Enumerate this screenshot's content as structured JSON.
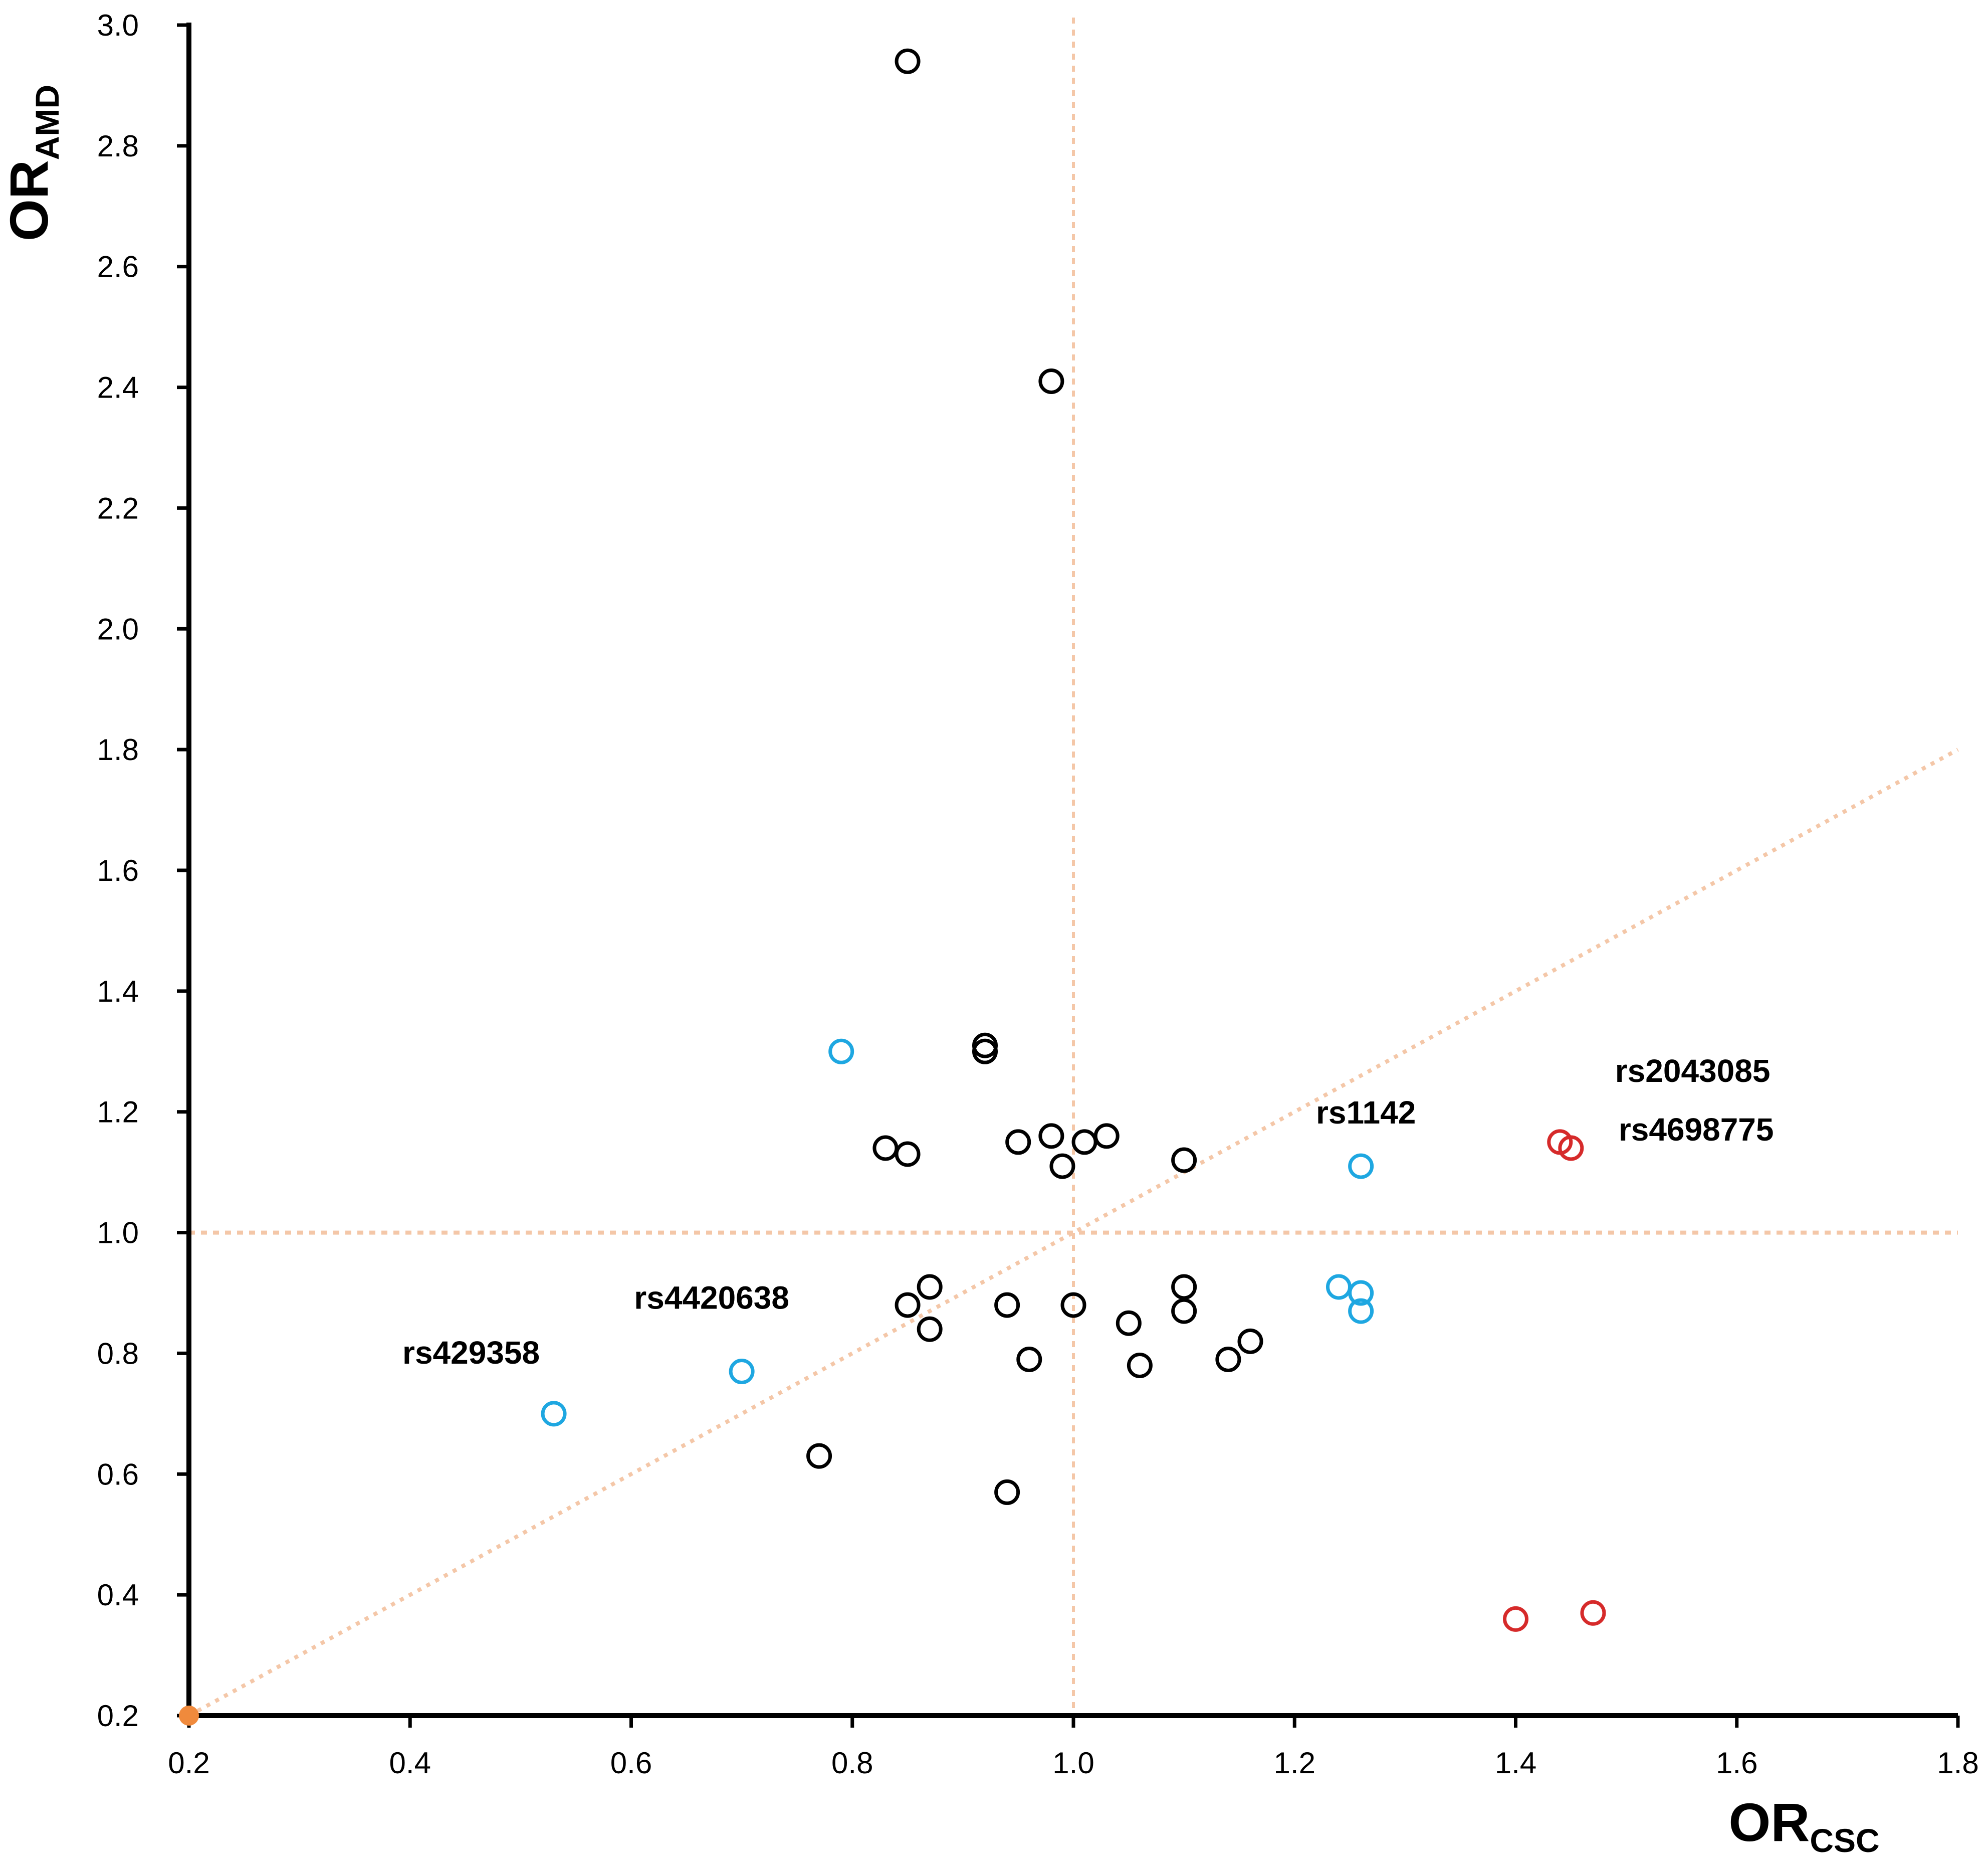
{
  "chart_data": {
    "type": "scatter",
    "title": "",
    "xlabel": {
      "main": "OR",
      "sub": "CSC"
    },
    "ylabel": {
      "main": "OR",
      "sub": "AMD"
    },
    "xlim": [
      0.2,
      1.8
    ],
    "ylim": [
      0.2,
      3.0
    ],
    "x_ticks": [
      "0.2",
      "0.4",
      "0.6",
      "0.8",
      "1.0",
      "1.2",
      "1.4",
      "1.6",
      "1.8"
    ],
    "y_ticks": [
      "0.2",
      "0.4",
      "0.6",
      "0.8",
      "1.0",
      "1.2",
      "1.4",
      "1.6",
      "1.8",
      "2.0",
      "2.2",
      "2.4",
      "2.6",
      "2.8",
      "3.0"
    ],
    "grid": false,
    "reference_lines": [
      {
        "kind": "vertical",
        "x": 1.0,
        "color": "#f4c7a8"
      },
      {
        "kind": "horizontal",
        "y": 1.0,
        "color": "#f4c7a8"
      },
      {
        "kind": "diagonal",
        "from": [
          0.2,
          0.2
        ],
        "to": [
          1.8,
          1.8
        ],
        "color": "#f4c7a8"
      }
    ],
    "origin_marker": {
      "x": 0.2,
      "y": 0.2,
      "color": "#f08a3c"
    },
    "series": [
      {
        "name": "black",
        "color": "#000000",
        "points": [
          [
            0.85,
            2.94
          ],
          [
            0.98,
            2.41
          ],
          [
            0.92,
            1.31
          ],
          [
            0.92,
            1.3
          ],
          [
            0.83,
            1.14
          ],
          [
            0.85,
            1.13
          ],
          [
            0.95,
            1.15
          ],
          [
            0.98,
            1.16
          ],
          [
            1.01,
            1.15
          ],
          [
            1.03,
            1.16
          ],
          [
            0.99,
            1.11
          ],
          [
            1.1,
            1.12
          ],
          [
            0.85,
            0.88
          ],
          [
            0.87,
            0.91
          ],
          [
            0.87,
            0.84
          ],
          [
            0.94,
            0.88
          ],
          [
            1.0,
            0.88
          ],
          [
            0.96,
            0.79
          ],
          [
            1.05,
            0.85
          ],
          [
            1.06,
            0.78
          ],
          [
            1.1,
            0.91
          ],
          [
            1.1,
            0.87
          ],
          [
            1.14,
            0.79
          ],
          [
            1.16,
            0.82
          ],
          [
            0.77,
            0.63
          ],
          [
            0.94,
            0.57
          ]
        ]
      },
      {
        "name": "blue",
        "color": "#1ea7e1",
        "points": [
          [
            0.79,
            1.3
          ],
          [
            1.26,
            1.11
          ],
          [
            1.24,
            0.91
          ],
          [
            1.26,
            0.9
          ],
          [
            1.26,
            0.87
          ],
          [
            0.7,
            0.77
          ],
          [
            0.53,
            0.7
          ]
        ]
      },
      {
        "name": "red",
        "color": "#d62a2a",
        "points": [
          [
            1.44,
            1.15
          ],
          [
            1.45,
            1.14
          ],
          [
            1.4,
            0.36
          ],
          [
            1.47,
            0.37
          ]
        ]
      }
    ],
    "annotations": [
      {
        "text": "rs2043085",
        "x": 1.44,
        "y": 1.15
      },
      {
        "text": "rs4698775",
        "x": 1.45,
        "y": 1.14
      },
      {
        "text": "rs1142",
        "x": 1.26,
        "y": 1.11
      },
      {
        "text": "rs4420638",
        "x": 0.7,
        "y": 0.77
      },
      {
        "text": "rs429358",
        "x": 0.53,
        "y": 0.7
      }
    ]
  }
}
